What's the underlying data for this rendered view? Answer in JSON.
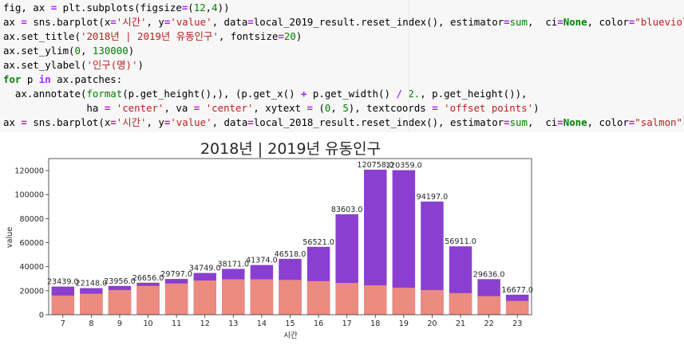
{
  "code_cell": {
    "lines": [
      [
        {
          "t": "fig, ax ",
          "c": ""
        },
        {
          "t": "=",
          "c": "op"
        },
        {
          "t": " plt.subplots(figsize",
          "c": ""
        },
        {
          "t": "=",
          "c": "op"
        },
        {
          "t": "(",
          "c": ""
        },
        {
          "t": "12",
          "c": "num"
        },
        {
          "t": ",",
          "c": ""
        },
        {
          "t": "4",
          "c": "num"
        },
        {
          "t": "))",
          "c": ""
        }
      ],
      [
        {
          "t": "ax ",
          "c": ""
        },
        {
          "t": "=",
          "c": "op"
        },
        {
          "t": " sns.barplot(x",
          "c": ""
        },
        {
          "t": "=",
          "c": "op"
        },
        {
          "t": "'시간'",
          "c": "str"
        },
        {
          "t": ", y",
          "c": ""
        },
        {
          "t": "=",
          "c": "op"
        },
        {
          "t": "'value'",
          "c": "str"
        },
        {
          "t": ", data",
          "c": ""
        },
        {
          "t": "=",
          "c": "op"
        },
        {
          "t": "local_2019_result.reset_index(), estimator",
          "c": ""
        },
        {
          "t": "=",
          "c": "op"
        },
        {
          "t": "sum",
          "c": "func"
        },
        {
          "t": ",  ci",
          "c": ""
        },
        {
          "t": "=",
          "c": "op"
        },
        {
          "t": "None",
          "c": "kw"
        },
        {
          "t": ", color",
          "c": ""
        },
        {
          "t": "=",
          "c": "op"
        },
        {
          "t": "\"blueviolet\"",
          "c": "str"
        },
        {
          "t": ")",
          "c": ""
        }
      ],
      [
        {
          "t": "ax.set_title(",
          "c": ""
        },
        {
          "t": "'2018년 | 2019년 유동인구'",
          "c": "str"
        },
        {
          "t": ", fontsize",
          "c": ""
        },
        {
          "t": "=",
          "c": "op"
        },
        {
          "t": "20",
          "c": "num"
        },
        {
          "t": ")",
          "c": ""
        }
      ],
      [
        {
          "t": "ax.set_ylim(",
          "c": ""
        },
        {
          "t": "0",
          "c": "num"
        },
        {
          "t": ", ",
          "c": ""
        },
        {
          "t": "130000",
          "c": "num"
        },
        {
          "t": ")",
          "c": ""
        }
      ],
      [
        {
          "t": "ax.set_ylabel(",
          "c": ""
        },
        {
          "t": "'인구(명)'",
          "c": "str"
        },
        {
          "t": ")",
          "c": ""
        }
      ],
      [
        {
          "t": "for",
          "c": "kw"
        },
        {
          "t": " p ",
          "c": ""
        },
        {
          "t": "in",
          "c": "op"
        },
        {
          "t": " ax.patches:",
          "c": ""
        }
      ],
      [
        {
          "t": "  ax.annotate(",
          "c": ""
        },
        {
          "t": "format",
          "c": "func"
        },
        {
          "t": "(p.get_height(),), (p.get_x() ",
          "c": ""
        },
        {
          "t": "+",
          "c": "op"
        },
        {
          "t": " p.get_width() ",
          "c": ""
        },
        {
          "t": "/",
          "c": "op"
        },
        {
          "t": " ",
          "c": ""
        },
        {
          "t": "2.",
          "c": "num"
        },
        {
          "t": ", p.get_height()),",
          "c": ""
        }
      ],
      [
        {
          "t": "              ha ",
          "c": ""
        },
        {
          "t": "=",
          "c": "op"
        },
        {
          "t": " ",
          "c": ""
        },
        {
          "t": "'center'",
          "c": "str"
        },
        {
          "t": ", va ",
          "c": ""
        },
        {
          "t": "=",
          "c": "op"
        },
        {
          "t": " ",
          "c": ""
        },
        {
          "t": "'center'",
          "c": "str"
        },
        {
          "t": ", xytext ",
          "c": ""
        },
        {
          "t": "=",
          "c": "op"
        },
        {
          "t": " (",
          "c": ""
        },
        {
          "t": "0",
          "c": "num"
        },
        {
          "t": ", ",
          "c": ""
        },
        {
          "t": "5",
          "c": "num"
        },
        {
          "t": "), textcoords ",
          "c": ""
        },
        {
          "t": "=",
          "c": "op"
        },
        {
          "t": " ",
          "c": ""
        },
        {
          "t": "'offset points'",
          "c": "str"
        },
        {
          "t": ")",
          "c": ""
        }
      ],
      [
        {
          "t": "ax ",
          "c": ""
        },
        {
          "t": "=",
          "c": "op"
        },
        {
          "t": " sns.barplot(x",
          "c": ""
        },
        {
          "t": "=",
          "c": "op"
        },
        {
          "t": "'시간'",
          "c": "str"
        },
        {
          "t": ", y",
          "c": ""
        },
        {
          "t": "=",
          "c": "op"
        },
        {
          "t": "'value'",
          "c": "str"
        },
        {
          "t": ", data",
          "c": ""
        },
        {
          "t": "=",
          "c": "op"
        },
        {
          "t": "local_2018_result.reset_index(), estimator",
          "c": ""
        },
        {
          "t": "=",
          "c": "op"
        },
        {
          "t": "sum",
          "c": "func"
        },
        {
          "t": ",  ci",
          "c": ""
        },
        {
          "t": "=",
          "c": "op"
        },
        {
          "t": "None",
          "c": "kw"
        },
        {
          "t": ", color",
          "c": ""
        },
        {
          "t": "=",
          "c": "op"
        },
        {
          "t": "\"salmon\"",
          "c": "str"
        },
        {
          "t": ")",
          "c": ""
        }
      ]
    ]
  },
  "colors": {
    "series_2019": "#8a3fd1",
    "series_2018": "#ec8b7f",
    "code_bg": "#f7f7f7"
  },
  "chart_data": {
    "type": "bar",
    "title": "2018년 | 2019년 유동인구",
    "xlabel": "시간",
    "ylabel": "value",
    "ylim": [
      0,
      130000
    ],
    "yticks": [
      0,
      20000,
      40000,
      60000,
      80000,
      100000,
      120000
    ],
    "ytick_labels": [
      "0",
      "20000",
      "40000",
      "60000",
      "80000",
      "100000",
      "120000"
    ],
    "categories": [
      "7",
      "8",
      "9",
      "10",
      "11",
      "12",
      "13",
      "14",
      "15",
      "16",
      "17",
      "18",
      "19",
      "20",
      "21",
      "22",
      "23"
    ],
    "series": [
      {
        "values": [
          23439,
          22148,
          23956,
          26656,
          29797,
          34749,
          38171,
          41374,
          46518,
          56521,
          83603,
          120758,
          120359,
          94197,
          56911,
          29636,
          16677
        ],
        "labels": [
          "23439.0",
          "22148.0",
          "23956.0",
          "26656.0",
          "29797.0",
          "34749.0",
          "38171.0",
          "41374.0",
          "46518.0",
          "56521.0",
          "83603.0",
          "120758.0",
          "120359.0",
          "94197.0",
          "56911.0",
          "29636.0",
          "16677.0"
        ]
      },
      {
        "values": [
          16000,
          17500,
          20500,
          24000,
          26000,
          28500,
          29500,
          29500,
          29000,
          28000,
          26500,
          24500,
          22500,
          20500,
          18000,
          15500,
          11500
        ]
      }
    ],
    "grid": false,
    "legend": "none"
  }
}
